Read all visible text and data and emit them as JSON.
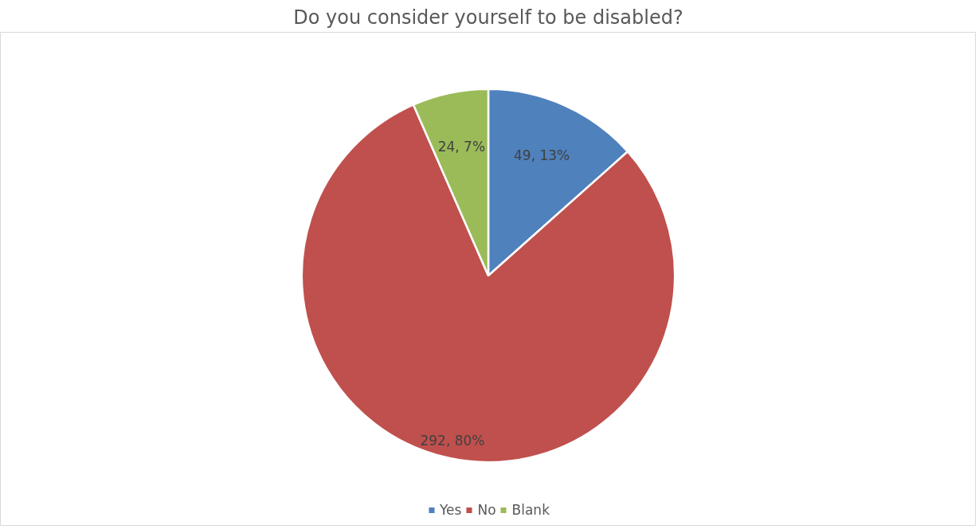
{
  "chart_data": {
    "type": "pie",
    "title": "Do you consider yourself to be disabled?",
    "categories": [
      "Yes",
      "No",
      "Blank"
    ],
    "values": [
      49,
      292,
      24
    ],
    "colors": [
      "#4f81bd",
      "#c0504d",
      "#9bbb59"
    ],
    "value_labels": [
      "49, 13%",
      "292, 80%",
      "24, 7%"
    ],
    "legend": "bottom"
  }
}
